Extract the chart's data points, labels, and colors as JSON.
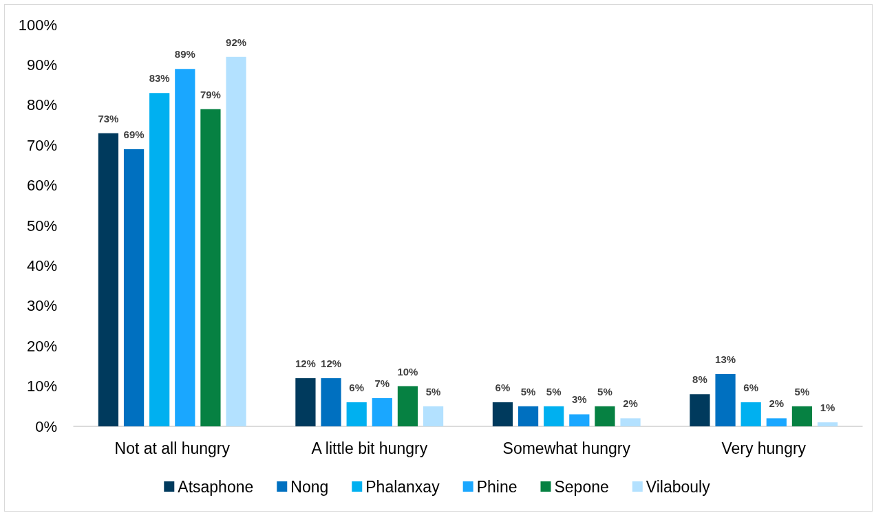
{
  "chart_data": {
    "type": "bar",
    "categories": [
      "Not at all hungry",
      "A little bit hungry",
      "Somewhat hungry",
      "Very hungry"
    ],
    "series": [
      {
        "name": "Atsaphone",
        "color": "#003a5d",
        "values": [
          73,
          12,
          6,
          8
        ],
        "value_labels": [
          "73%",
          "12%",
          "6%",
          "8%"
        ]
      },
      {
        "name": "Nong",
        "color": "#0070c0",
        "values": [
          69,
          12,
          5,
          13
        ],
        "value_labels": [
          "69%",
          "12%",
          "5%",
          "13%"
        ]
      },
      {
        "name": "Phalanxay",
        "color": "#00b0f0",
        "values": [
          83,
          6,
          5,
          6
        ],
        "value_labels": [
          "83%",
          "6%",
          "5%",
          "6%"
        ]
      },
      {
        "name": "Phine",
        "color": "#1aa7ff",
        "values": [
          89,
          7,
          3,
          2
        ],
        "value_labels": [
          "89%",
          "7%",
          "3%",
          "2%"
        ]
      },
      {
        "name": "Sepone",
        "color": "#068142",
        "values": [
          79,
          10,
          5,
          5
        ],
        "value_labels": [
          "79%",
          "10%",
          "5%",
          "5%"
        ]
      },
      {
        "name": "Vilabouly",
        "color": "#b3e1ff",
        "values": [
          92,
          5,
          2,
          1
        ],
        "value_labels": [
          "92%",
          "5%",
          "2%",
          "1%"
        ]
      }
    ],
    "ylim": [
      0,
      100
    ],
    "yticks": [
      {
        "value": 0,
        "label": "0%"
      },
      {
        "value": 10,
        "label": "10%"
      },
      {
        "value": 20,
        "label": "20%"
      },
      {
        "value": 30,
        "label": "30%"
      },
      {
        "value": 40,
        "label": "40%"
      },
      {
        "value": 50,
        "label": "50%"
      },
      {
        "value": 60,
        "label": "60%"
      },
      {
        "value": 70,
        "label": "70%"
      },
      {
        "value": 80,
        "label": "80%"
      },
      {
        "value": 90,
        "label": "90%"
      },
      {
        "value": 100,
        "label": "100%"
      }
    ],
    "grid": false,
    "legend": "bottom"
  }
}
